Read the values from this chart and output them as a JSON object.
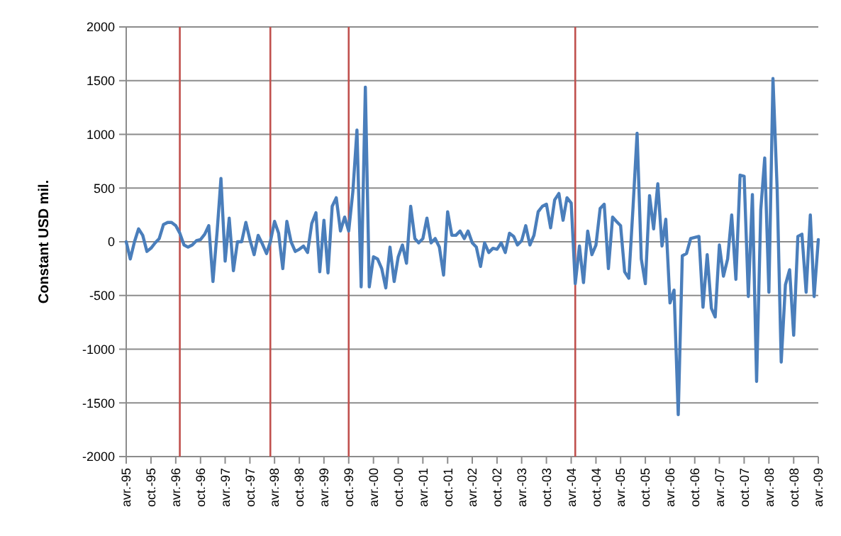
{
  "chart_data": {
    "type": "line",
    "ylabel": "Constant USD mil.",
    "x": [
      "1995-04",
      "1995-05",
      "1995-06",
      "1995-07",
      "1995-08",
      "1995-09",
      "1995-10",
      "1995-11",
      "1995-12",
      "1996-01",
      "1996-02",
      "1996-03",
      "1996-04",
      "1996-05",
      "1996-06",
      "1996-07",
      "1996-08",
      "1996-09",
      "1996-10",
      "1996-11",
      "1996-12",
      "1997-01",
      "1997-02",
      "1997-03",
      "1997-04",
      "1997-05",
      "1997-06",
      "1997-07",
      "1997-08",
      "1997-09",
      "1997-10",
      "1997-11",
      "1997-12",
      "1998-01",
      "1998-02",
      "1998-03",
      "1998-04",
      "1998-05",
      "1998-06",
      "1998-07",
      "1998-08",
      "1998-09",
      "1998-10",
      "1998-11",
      "1998-12",
      "1999-01",
      "1999-02",
      "1999-03",
      "1999-04",
      "1999-05",
      "1999-06",
      "1999-07",
      "1999-08",
      "1999-09",
      "1999-10",
      "1999-11",
      "1999-12",
      "2000-01",
      "2000-02",
      "2000-03",
      "2000-04",
      "2000-05",
      "2000-06",
      "2000-07",
      "2000-08",
      "2000-09",
      "2000-10",
      "2000-11",
      "2000-12",
      "2001-01",
      "2001-02",
      "2001-03",
      "2001-04",
      "2001-05",
      "2001-06",
      "2001-07",
      "2001-08",
      "2001-09",
      "2001-10",
      "2001-11",
      "2001-12",
      "2002-01",
      "2002-02",
      "2002-03",
      "2002-04",
      "2002-05",
      "2002-06",
      "2002-07",
      "2002-08",
      "2002-09",
      "2002-10",
      "2002-11",
      "2002-12",
      "2003-01",
      "2003-02",
      "2003-03",
      "2003-04",
      "2003-05",
      "2003-06",
      "2003-07",
      "2003-08",
      "2003-09",
      "2003-10",
      "2003-11",
      "2003-12",
      "2004-01",
      "2004-02",
      "2004-03",
      "2004-04",
      "2004-05",
      "2004-06",
      "2004-07",
      "2004-08",
      "2004-09",
      "2004-10",
      "2004-11",
      "2004-12",
      "2005-01",
      "2005-02",
      "2005-03",
      "2005-04",
      "2005-05",
      "2005-06",
      "2005-07",
      "2005-08",
      "2005-09",
      "2005-10",
      "2005-11",
      "2005-12",
      "2006-01",
      "2006-02",
      "2006-03",
      "2006-04",
      "2006-05",
      "2006-06",
      "2006-07",
      "2006-08",
      "2006-09",
      "2006-10",
      "2006-11",
      "2006-12",
      "2007-01",
      "2007-02",
      "2007-03",
      "2007-04",
      "2007-05",
      "2007-06",
      "2007-07",
      "2007-08",
      "2007-09",
      "2007-10",
      "2007-11",
      "2007-12",
      "2008-01",
      "2008-02",
      "2008-03",
      "2008-04",
      "2008-05",
      "2008-06",
      "2008-07",
      "2008-08",
      "2008-09",
      "2008-10",
      "2008-11",
      "2008-12",
      "2009-01",
      "2009-02",
      "2009-03",
      "2009-04"
    ],
    "series": [
      {
        "color": "#4a7ebb",
        "values": [
          0,
          -160,
          0,
          120,
          60,
          -90,
          -60,
          -10,
          30,
          160,
          180,
          180,
          150,
          80,
          -30,
          -50,
          -30,
          10,
          20,
          70,
          150,
          -370,
          100,
          590,
          -180,
          220,
          -270,
          0,
          0,
          180,
          20,
          -120,
          60,
          -20,
          -110,
          0,
          190,
          80,
          -250,
          190,
          0,
          -90,
          -70,
          -40,
          -100,
          170,
          270,
          -280,
          200,
          -290,
          330,
          410,
          100,
          230,
          100,
          470,
          1040,
          -420,
          1440,
          -420,
          -140,
          -160,
          -250,
          -430,
          -50,
          -370,
          -140,
          -30,
          -200,
          330,
          30,
          -10,
          30,
          220,
          -10,
          30,
          -50,
          -310,
          280,
          60,
          60,
          100,
          30,
          100,
          -10,
          -50,
          -230,
          -10,
          -100,
          -60,
          -70,
          -10,
          -100,
          80,
          50,
          -30,
          10,
          150,
          -30,
          60,
          280,
          330,
          350,
          130,
          390,
          450,
          200,
          410,
          360,
          -390,
          -40,
          -380,
          100,
          -120,
          -30,
          310,
          350,
          -250,
          230,
          190,
          150,
          -280,
          -340,
          300,
          1010,
          -160,
          -390,
          430,
          120,
          540,
          -40,
          210,
          -570,
          -450,
          -1610,
          -130,
          -110,
          30,
          40,
          50,
          -610,
          -120,
          -620,
          -700,
          -30,
          -320,
          -160,
          250,
          -350,
          620,
          610,
          -510,
          440,
          -1300,
          300,
          780,
          -470,
          1520,
          490,
          -1120,
          -400,
          -260,
          -870,
          50,
          70,
          -470,
          250,
          -510,
          20
        ]
      }
    ],
    "xlim": [
      "1995-04",
      "2009-04"
    ],
    "xticks": [
      {
        "value": "1995-04",
        "label": "avr.-95"
      },
      {
        "value": "1995-10",
        "label": "oct.-95"
      },
      {
        "value": "1996-04",
        "label": "avr.-96"
      },
      {
        "value": "1996-10",
        "label": "oct.-96"
      },
      {
        "value": "1997-04",
        "label": "avr.-97"
      },
      {
        "value": "1997-10",
        "label": "oct.-97"
      },
      {
        "value": "1998-04",
        "label": "avr.-98"
      },
      {
        "value": "1998-10",
        "label": "oct.-98"
      },
      {
        "value": "1999-04",
        "label": "avr.-99"
      },
      {
        "value": "1999-10",
        "label": "oct.-99"
      },
      {
        "value": "2000-04",
        "label": "avr.-00"
      },
      {
        "value": "2000-10",
        "label": "oct.-00"
      },
      {
        "value": "2001-04",
        "label": "avr.-01"
      },
      {
        "value": "2001-10",
        "label": "oct.-01"
      },
      {
        "value": "2002-04",
        "label": "avr.-02"
      },
      {
        "value": "2002-10",
        "label": "oct.-02"
      },
      {
        "value": "2003-04",
        "label": "avr.-03"
      },
      {
        "value": "2003-10",
        "label": "oct.-03"
      },
      {
        "value": "2004-04",
        "label": "avr.-04"
      },
      {
        "value": "2004-10",
        "label": "oct.-04"
      },
      {
        "value": "2005-04",
        "label": "avr.-05"
      },
      {
        "value": "2005-10",
        "label": "oct.-05"
      },
      {
        "value": "2006-04",
        "label": "avr.-06"
      },
      {
        "value": "2006-10",
        "label": "oct.-06"
      },
      {
        "value": "2007-04",
        "label": "avr.-07"
      },
      {
        "value": "2007-10",
        "label": "oct.-07"
      },
      {
        "value": "2008-04",
        "label": "avr.-08"
      },
      {
        "value": "2008-10",
        "label": "oct.-08"
      },
      {
        "value": "2009-04",
        "label": "avr.-09"
      }
    ],
    "ylim": [
      -2000,
      2000
    ],
    "yticks": [
      -2000,
      -1500,
      -1000,
      -500,
      0,
      500,
      1000,
      1500,
      2000
    ],
    "grid": "y",
    "marker": "none",
    "line_style": "solid",
    "ref_lines": [
      {
        "axis": "x",
        "value": "1996-05",
        "color": "#c0504d"
      },
      {
        "axis": "x",
        "value": "1998-03",
        "color": "#c0504d"
      },
      {
        "axis": "x",
        "value": "1999-10",
        "color": "#c0504d"
      },
      {
        "axis": "x",
        "value": "2004-05",
        "color": "#c0504d"
      }
    ]
  }
}
